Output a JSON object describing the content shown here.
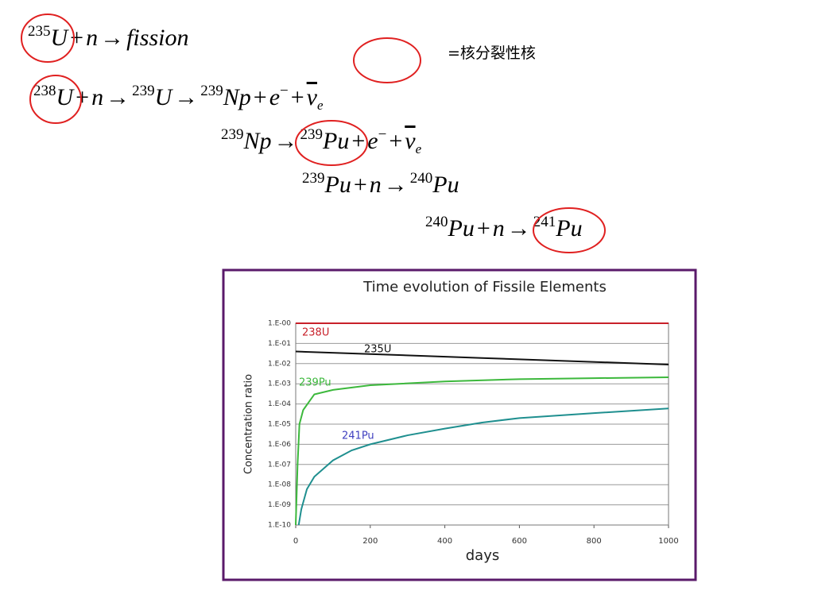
{
  "slide": {
    "note": "=核分裂性核",
    "equations": [
      [
        {
          "pre": "235",
          "t": "U"
        },
        "+",
        {
          "t": "n"
        },
        "→",
        {
          "t": "fission"
        }
      ],
      [
        {
          "pre": "238",
          "t": "U"
        },
        "+",
        {
          "t": "n"
        },
        "→",
        {
          "pre": "239",
          "t": "U"
        },
        "→",
        {
          "pre": "239",
          "t": "Np"
        },
        "+",
        {
          "t": "e",
          "sup": "−"
        },
        "+",
        {
          "t": "ν",
          "sub": "e",
          "bar": true
        }
      ],
      [
        {
          "pre": "239",
          "t": "Np"
        },
        "→",
        {
          "pre": "239",
          "t": "Pu"
        },
        "+",
        {
          "t": "e",
          "sup": "−"
        },
        "+",
        {
          "t": "ν",
          "sub": "e",
          "bar": true
        }
      ],
      [
        {
          "pre": "239",
          "t": "Pu"
        },
        "+",
        {
          "t": "n"
        },
        "→",
        {
          "pre": "240",
          "t": "Pu"
        }
      ],
      [
        {
          "pre": "240",
          "t": "Pu"
        },
        "+",
        {
          "t": "n"
        },
        "→",
        {
          "pre": "241",
          "t": "Pu"
        }
      ]
    ]
  },
  "chart_data": {
    "type": "line",
    "title": "Time evolution of Fissile Elements",
    "xlabel": "days",
    "ylabel": "Concentration ratio",
    "log_y": true,
    "grid": true,
    "xlim": [
      0,
      1000
    ],
    "xticks": [
      0,
      200,
      400,
      600,
      800,
      1000
    ],
    "ylim": [
      1e-10,
      1
    ],
    "yticks": [
      {
        "value": 1,
        "label": "1.E-00"
      },
      {
        "value": 0.1,
        "label": "1.E-01"
      },
      {
        "value": 0.01,
        "label": "1.E-02"
      },
      {
        "value": 0.001,
        "label": "1.E-03"
      },
      {
        "value": 0.0001,
        "label": "1.E-04"
      },
      {
        "value": 1e-05,
        "label": "1.E-05"
      },
      {
        "value": 1e-06,
        "label": "1.E-06"
      },
      {
        "value": 1e-07,
        "label": "1.E-07"
      },
      {
        "value": 1e-08,
        "label": "1.E-08"
      },
      {
        "value": 1e-09,
        "label": "1.E-09"
      },
      {
        "value": 1e-10,
        "label": "1.E-10"
      }
    ],
    "series": [
      {
        "name": "238U",
        "color": "#c8202a",
        "label_color": "#c8202a",
        "x": [
          0,
          1000
        ],
        "values": [
          1,
          1
        ]
      },
      {
        "name": "235U",
        "color": "#111111",
        "label_color": "#111111",
        "x": [
          0,
          500,
          1000
        ],
        "values": [
          0.04,
          0.019,
          0.009
        ]
      },
      {
        "name": "239Pu",
        "color": "#3cb83c",
        "label_color": "#3cb83c",
        "x": [
          0,
          5,
          10,
          20,
          50,
          100,
          200,
          400,
          600,
          800,
          1000
        ],
        "values": [
          1e-10,
          1e-07,
          1e-05,
          5e-05,
          0.0003,
          0.0005,
          0.00085,
          0.0013,
          0.0017,
          0.0019,
          0.0021
        ]
      },
      {
        "name": "241Pu",
        "color": "#1f8f8f",
        "label_color": "#4040c0",
        "x": [
          8,
          15,
          30,
          50,
          100,
          150,
          200,
          300,
          400,
          500,
          600,
          800,
          1000
        ],
        "values": [
          1e-10,
          6e-10,
          6e-09,
          2.5e-08,
          1.6e-07,
          5e-07,
          1e-06,
          2.8e-06,
          6e-06,
          1.2e-05,
          2e-05,
          3.5e-05,
          6e-05
        ]
      }
    ]
  }
}
